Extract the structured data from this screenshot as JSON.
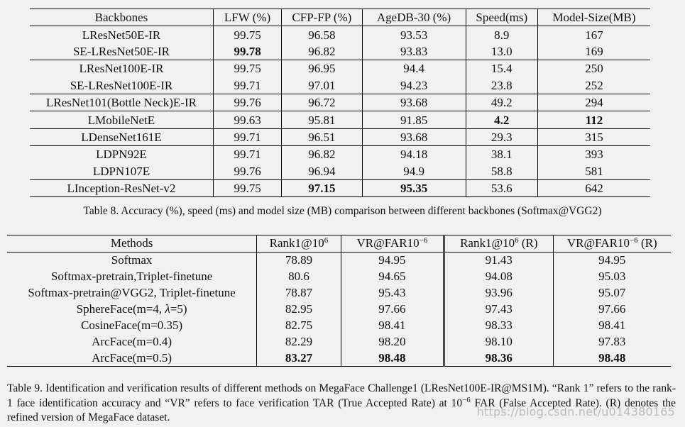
{
  "table8": {
    "headers": [
      "Backbones",
      "LFW (%)",
      "CFP-FP (%)",
      "AgeDB-30 (%)",
      "Speed(ms)",
      "Model-Size(MB)"
    ],
    "rows": [
      {
        "name": "LResNet50E-IR",
        "lfw": "99.75",
        "cfp": "96.58",
        "agedb": "93.53",
        "speed": "8.9",
        "size": "167"
      },
      {
        "name": "SE-LResNet50E-IR",
        "lfw": "99.78",
        "cfp": "96.82",
        "agedb": "93.83",
        "speed": "13.0",
        "size": "169"
      },
      {
        "name": "LResNet100E-IR",
        "lfw": "99.75",
        "cfp": "96.95",
        "agedb": "94.4",
        "speed": "15.4",
        "size": "250"
      },
      {
        "name": "SE-LResNet100E-IR",
        "lfw": "99.71",
        "cfp": "97.01",
        "agedb": "94.23",
        "speed": "23.8",
        "size": "252"
      },
      {
        "name": "LResNet101(Bottle Neck)E-IR",
        "lfw": "99.76",
        "cfp": "96.72",
        "agedb": "93.68",
        "speed": "49.2",
        "size": "294"
      },
      {
        "name": "LMobileNetE",
        "lfw": "99.63",
        "cfp": "95.81",
        "agedb": "91.85",
        "speed": "4.2",
        "size": "112"
      },
      {
        "name": "LDenseNet161E",
        "lfw": "99.71",
        "cfp": "96.51",
        "agedb": "93.68",
        "speed": "29.3",
        "size": "315"
      },
      {
        "name": "LDPN92E",
        "lfw": "99.71",
        "cfp": "96.82",
        "agedb": "94.18",
        "speed": "38.1",
        "size": "393"
      },
      {
        "name": "LDPN107E",
        "lfw": "99.76",
        "cfp": "96.94",
        "agedb": "94.9",
        "speed": "58.8",
        "size": "581"
      },
      {
        "name": "LInception-ResNet-v2",
        "lfw": "99.75",
        "cfp": "97.15",
        "agedb": "95.35",
        "speed": "53.6",
        "size": "642"
      }
    ],
    "caption": "Table 8. Accuracy (%), speed (ms) and model size (MB) comparison between different backbones (Softmax@VGG2)"
  },
  "table9": {
    "headers": {
      "methods": "Methods",
      "rank1_prefix": "Rank1@10",
      "rank1_exp": "6",
      "vr_prefix": "VR@FAR10",
      "vr_exp": "−6",
      "rank1r_prefix": "Rank1@10",
      "rank1r_exp": "6",
      "rank1r_suffix": " (R)",
      "vrr_prefix": "VR@FAR10",
      "vrr_exp": "−6",
      "vrr_suffix": " (R)"
    },
    "rows": [
      {
        "method": "Softmax",
        "rank1": "78.89",
        "vr": "94.95",
        "rank1r": "91.43",
        "vrr": "94.95"
      },
      {
        "method": "Softmax-pretrain,Triplet-finetune",
        "rank1": "80.6",
        "vr": "94.65",
        "rank1r": "94.08",
        "vrr": "95.03"
      },
      {
        "method": "Softmax-pretrain@VGG2, Triplet-finetune",
        "rank1": "78.87",
        "vr": "95.43",
        "rank1r": "93.96",
        "vrr": "95.07"
      },
      {
        "method_prefix": "SphereFace(m=4, ",
        "method_lambda": "λ",
        "method_suffix": "=5)",
        "rank1": "82.95",
        "vr": "97.66",
        "rank1r": "97.43",
        "vrr": "97.66"
      },
      {
        "method": "CosineFace(m=0.35)",
        "rank1": "82.75",
        "vr": "98.41",
        "rank1r": "98.33",
        "vrr": "98.41"
      },
      {
        "method": "ArcFace(m=0.4)",
        "rank1": "82.29",
        "vr": "98.20",
        "rank1r": "98.10",
        "vrr": "97.83"
      },
      {
        "method": "ArcFace(m=0.5)",
        "rank1": "83.27",
        "vr": "98.48",
        "rank1r": "98.36",
        "vrr": "98.48"
      }
    ],
    "caption_part1": "Table 9. Identification and verification results of different methods on MegaFace Challenge1 (LResNet100E-IR@MS1M). “Rank 1” refers to the rank-1 face identification accuracy and “VR” refers to face verification TAR (True Accepted Rate) at 10",
    "caption_exp": "−6",
    "caption_part2": " FAR (False Accepted Rate). (R) denotes the refined version of MegaFace dataset."
  },
  "watermark": "https://blog.csdn.net/u014380165"
}
